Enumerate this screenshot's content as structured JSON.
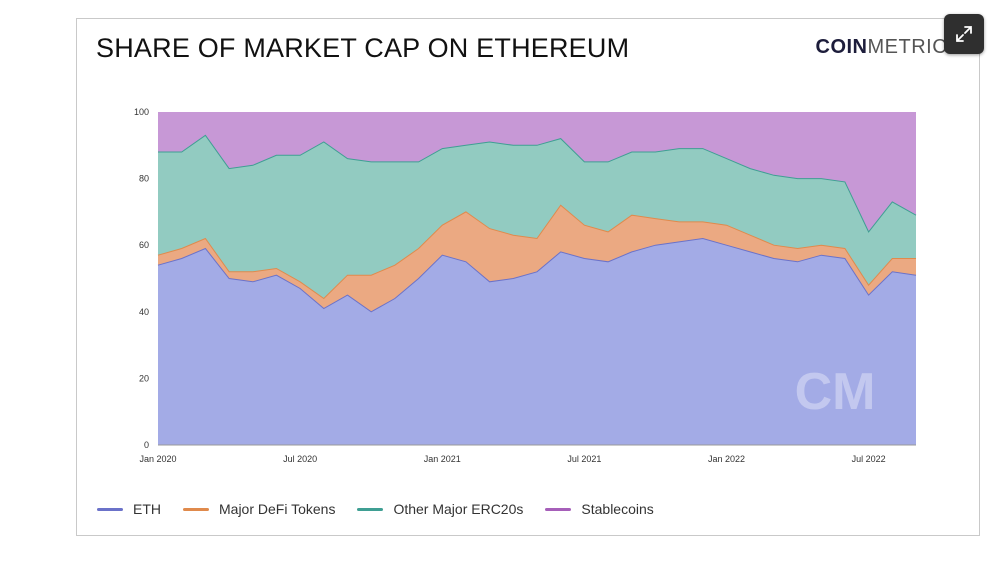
{
  "header": {
    "title": "SHARE OF MARKET CAP ON ETHEREUM",
    "brand_bold": "COIN",
    "brand_light": "METRICS"
  },
  "watermark": "CM",
  "chart_data": {
    "type": "area",
    "stacked": true,
    "title": "SHARE OF MARKET CAP ON ETHEREUM",
    "xlabel": "",
    "ylabel": "",
    "ylim": [
      0,
      100
    ],
    "yticks": [
      0,
      20,
      40,
      60,
      80,
      100
    ],
    "xtick_labels": [
      "Jan 2020",
      "Jul 2020",
      "Jan 2021",
      "Jul 2021",
      "Jan 2022",
      "Jul 2022"
    ],
    "x": [
      "2020-01",
      "2020-02",
      "2020-03",
      "2020-04",
      "2020-05",
      "2020-06",
      "2020-07",
      "2020-08",
      "2020-09",
      "2020-10",
      "2020-11",
      "2020-12",
      "2021-01",
      "2021-02",
      "2021-03",
      "2021-04",
      "2021-05",
      "2021-06",
      "2021-07",
      "2021-08",
      "2021-09",
      "2021-10",
      "2021-11",
      "2021-12",
      "2022-01",
      "2022-02",
      "2022-03",
      "2022-04",
      "2022-05",
      "2022-06",
      "2022-07",
      "2022-08",
      "2022-09"
    ],
    "legend_position": "bottom",
    "series": [
      {
        "name": "ETH",
        "color": "#6b72c9",
        "fill": "#a3abe6",
        "values": [
          54,
          56,
          59,
          50,
          49,
          51,
          47,
          41,
          45,
          40,
          44,
          50,
          57,
          55,
          49,
          50,
          52,
          58,
          56,
          55,
          58,
          60,
          61,
          62,
          60,
          58,
          56,
          55,
          57,
          56,
          45,
          52,
          51
        ]
      },
      {
        "name": "Major DeFi Tokens",
        "color": "#e08a4c",
        "fill": "#eba982",
        "values": [
          3,
          3,
          3,
          2,
          3,
          2,
          2,
          3,
          6,
          11,
          10,
          9,
          9,
          15,
          16,
          13,
          10,
          14,
          10,
          9,
          11,
          8,
          6,
          5,
          6,
          5,
          4,
          4,
          3,
          3,
          3,
          4,
          5
        ]
      },
      {
        "name": "Other Major ERC20s",
        "color": "#3f9f93",
        "fill": "#92cbc1",
        "values": [
          31,
          29,
          31,
          31,
          32,
          34,
          38,
          47,
          35,
          34,
          31,
          26,
          23,
          20,
          26,
          27,
          28,
          20,
          19,
          21,
          19,
          20,
          22,
          22,
          20,
          20,
          21,
          21,
          20,
          20,
          16,
          17,
          13
        ]
      },
      {
        "name": "Stablecoins",
        "color": "#a65fb9",
        "fill": "#c798d6",
        "values": [
          12,
          12,
          7,
          17,
          16,
          13,
          13,
          9,
          14,
          15,
          15,
          15,
          11,
          10,
          9,
          10,
          10,
          8,
          15,
          15,
          12,
          12,
          11,
          11,
          14,
          17,
          19,
          20,
          20,
          21,
          36,
          27,
          31
        ]
      }
    ]
  }
}
